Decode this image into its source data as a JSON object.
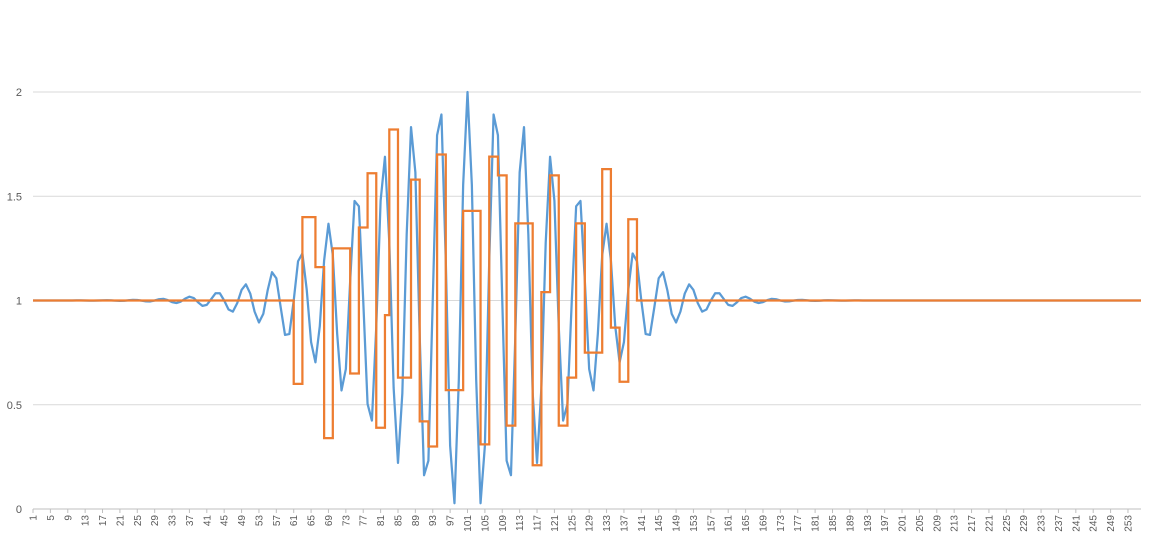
{
  "chart_data": {
    "type": "line",
    "x_start": 1,
    "x_end": 256,
    "x_tick_labels": [
      "1",
      "5",
      "9",
      "13",
      "17",
      "21",
      "25",
      "29",
      "33",
      "37",
      "41",
      "45",
      "49",
      "53",
      "57",
      "61",
      "65",
      "69",
      "73",
      "77",
      "81",
      "85",
      "89",
      "93",
      "97",
      "101",
      "105",
      "109",
      "113",
      "117",
      "121",
      "125",
      "129",
      "133",
      "137",
      "141",
      "145",
      "149",
      "153",
      "157",
      "161",
      "165",
      "169",
      "173",
      "177",
      "181",
      "185",
      "189",
      "193",
      "197",
      "201",
      "205",
      "209",
      "213",
      "217",
      "221",
      "225",
      "229",
      "233",
      "237",
      "241",
      "245",
      "249",
      "253"
    ],
    "y_ticks": [
      "0",
      "0.5",
      "1",
      "1.5",
      "2"
    ],
    "ylim": [
      0,
      2
    ],
    "grid": "horizontal",
    "legend": "none",
    "series": [
      {
        "color": "#5B9BD5",
        "carrier_period": 6.4,
        "envelope_center": 101,
        "envelope_peak_amplitude": 1.0,
        "envelope_sigma": 32,
        "baseline": 1
      },
      {
        "color": "#ED7D31",
        "style": "step",
        "baseline": 1,
        "steps": [
          {
            "x_from": 1,
            "x_to": 61,
            "y": 1
          },
          {
            "x_from": 61,
            "x_to": 63,
            "y": 0.6
          },
          {
            "x_from": 63,
            "x_to": 66,
            "y": 1.4
          },
          {
            "x_from": 66,
            "x_to": 68,
            "y": 1.16
          },
          {
            "x_from": 68,
            "x_to": 70,
            "y": 0.34
          },
          {
            "x_from": 70,
            "x_to": 74,
            "y": 1.25
          },
          {
            "x_from": 74,
            "x_to": 76,
            "y": 0.65
          },
          {
            "x_from": 76,
            "x_to": 78,
            "y": 1.35
          },
          {
            "x_from": 78,
            "x_to": 80,
            "y": 1.61
          },
          {
            "x_from": 80,
            "x_to": 82,
            "y": 0.39
          },
          {
            "x_from": 82,
            "x_to": 83,
            "y": 0.93
          },
          {
            "x_from": 83,
            "x_to": 85,
            "y": 1.82
          },
          {
            "x_from": 85,
            "x_to": 88,
            "y": 0.63
          },
          {
            "x_from": 88,
            "x_to": 90,
            "y": 1.58
          },
          {
            "x_from": 90,
            "x_to": 92,
            "y": 0.42
          },
          {
            "x_from": 92,
            "x_to": 94,
            "y": 0.3
          },
          {
            "x_from": 94,
            "x_to": 96,
            "y": 1.7
          },
          {
            "x_from": 96,
            "x_to": 100,
            "y": 0.57
          },
          {
            "x_from": 100,
            "x_to": 104,
            "y": 1.43
          },
          {
            "x_from": 104,
            "x_to": 106,
            "y": 0.31
          },
          {
            "x_from": 106,
            "x_to": 108,
            "y": 1.69
          },
          {
            "x_from": 108,
            "x_to": 110,
            "y": 1.6
          },
          {
            "x_from": 110,
            "x_to": 112,
            "y": 0.4
          },
          {
            "x_from": 112,
            "x_to": 116,
            "y": 1.37
          },
          {
            "x_from": 116,
            "x_to": 118,
            "y": 0.21
          },
          {
            "x_from": 118,
            "x_to": 120,
            "y": 1.04
          },
          {
            "x_from": 120,
            "x_to": 122,
            "y": 1.6
          },
          {
            "x_from": 122,
            "x_to": 124,
            "y": 0.4
          },
          {
            "x_from": 124,
            "x_to": 126,
            "y": 0.63
          },
          {
            "x_from": 126,
            "x_to": 128,
            "y": 1.37
          },
          {
            "x_from": 128,
            "x_to": 132,
            "y": 0.75
          },
          {
            "x_from": 132,
            "x_to": 134,
            "y": 1.63
          },
          {
            "x_from": 134,
            "x_to": 136,
            "y": 0.87
          },
          {
            "x_from": 136,
            "x_to": 138,
            "y": 0.61
          },
          {
            "x_from": 138,
            "x_to": 140,
            "y": 1.39
          },
          {
            "x_from": 140,
            "x_to": 256,
            "y": 1
          }
        ]
      }
    ]
  }
}
